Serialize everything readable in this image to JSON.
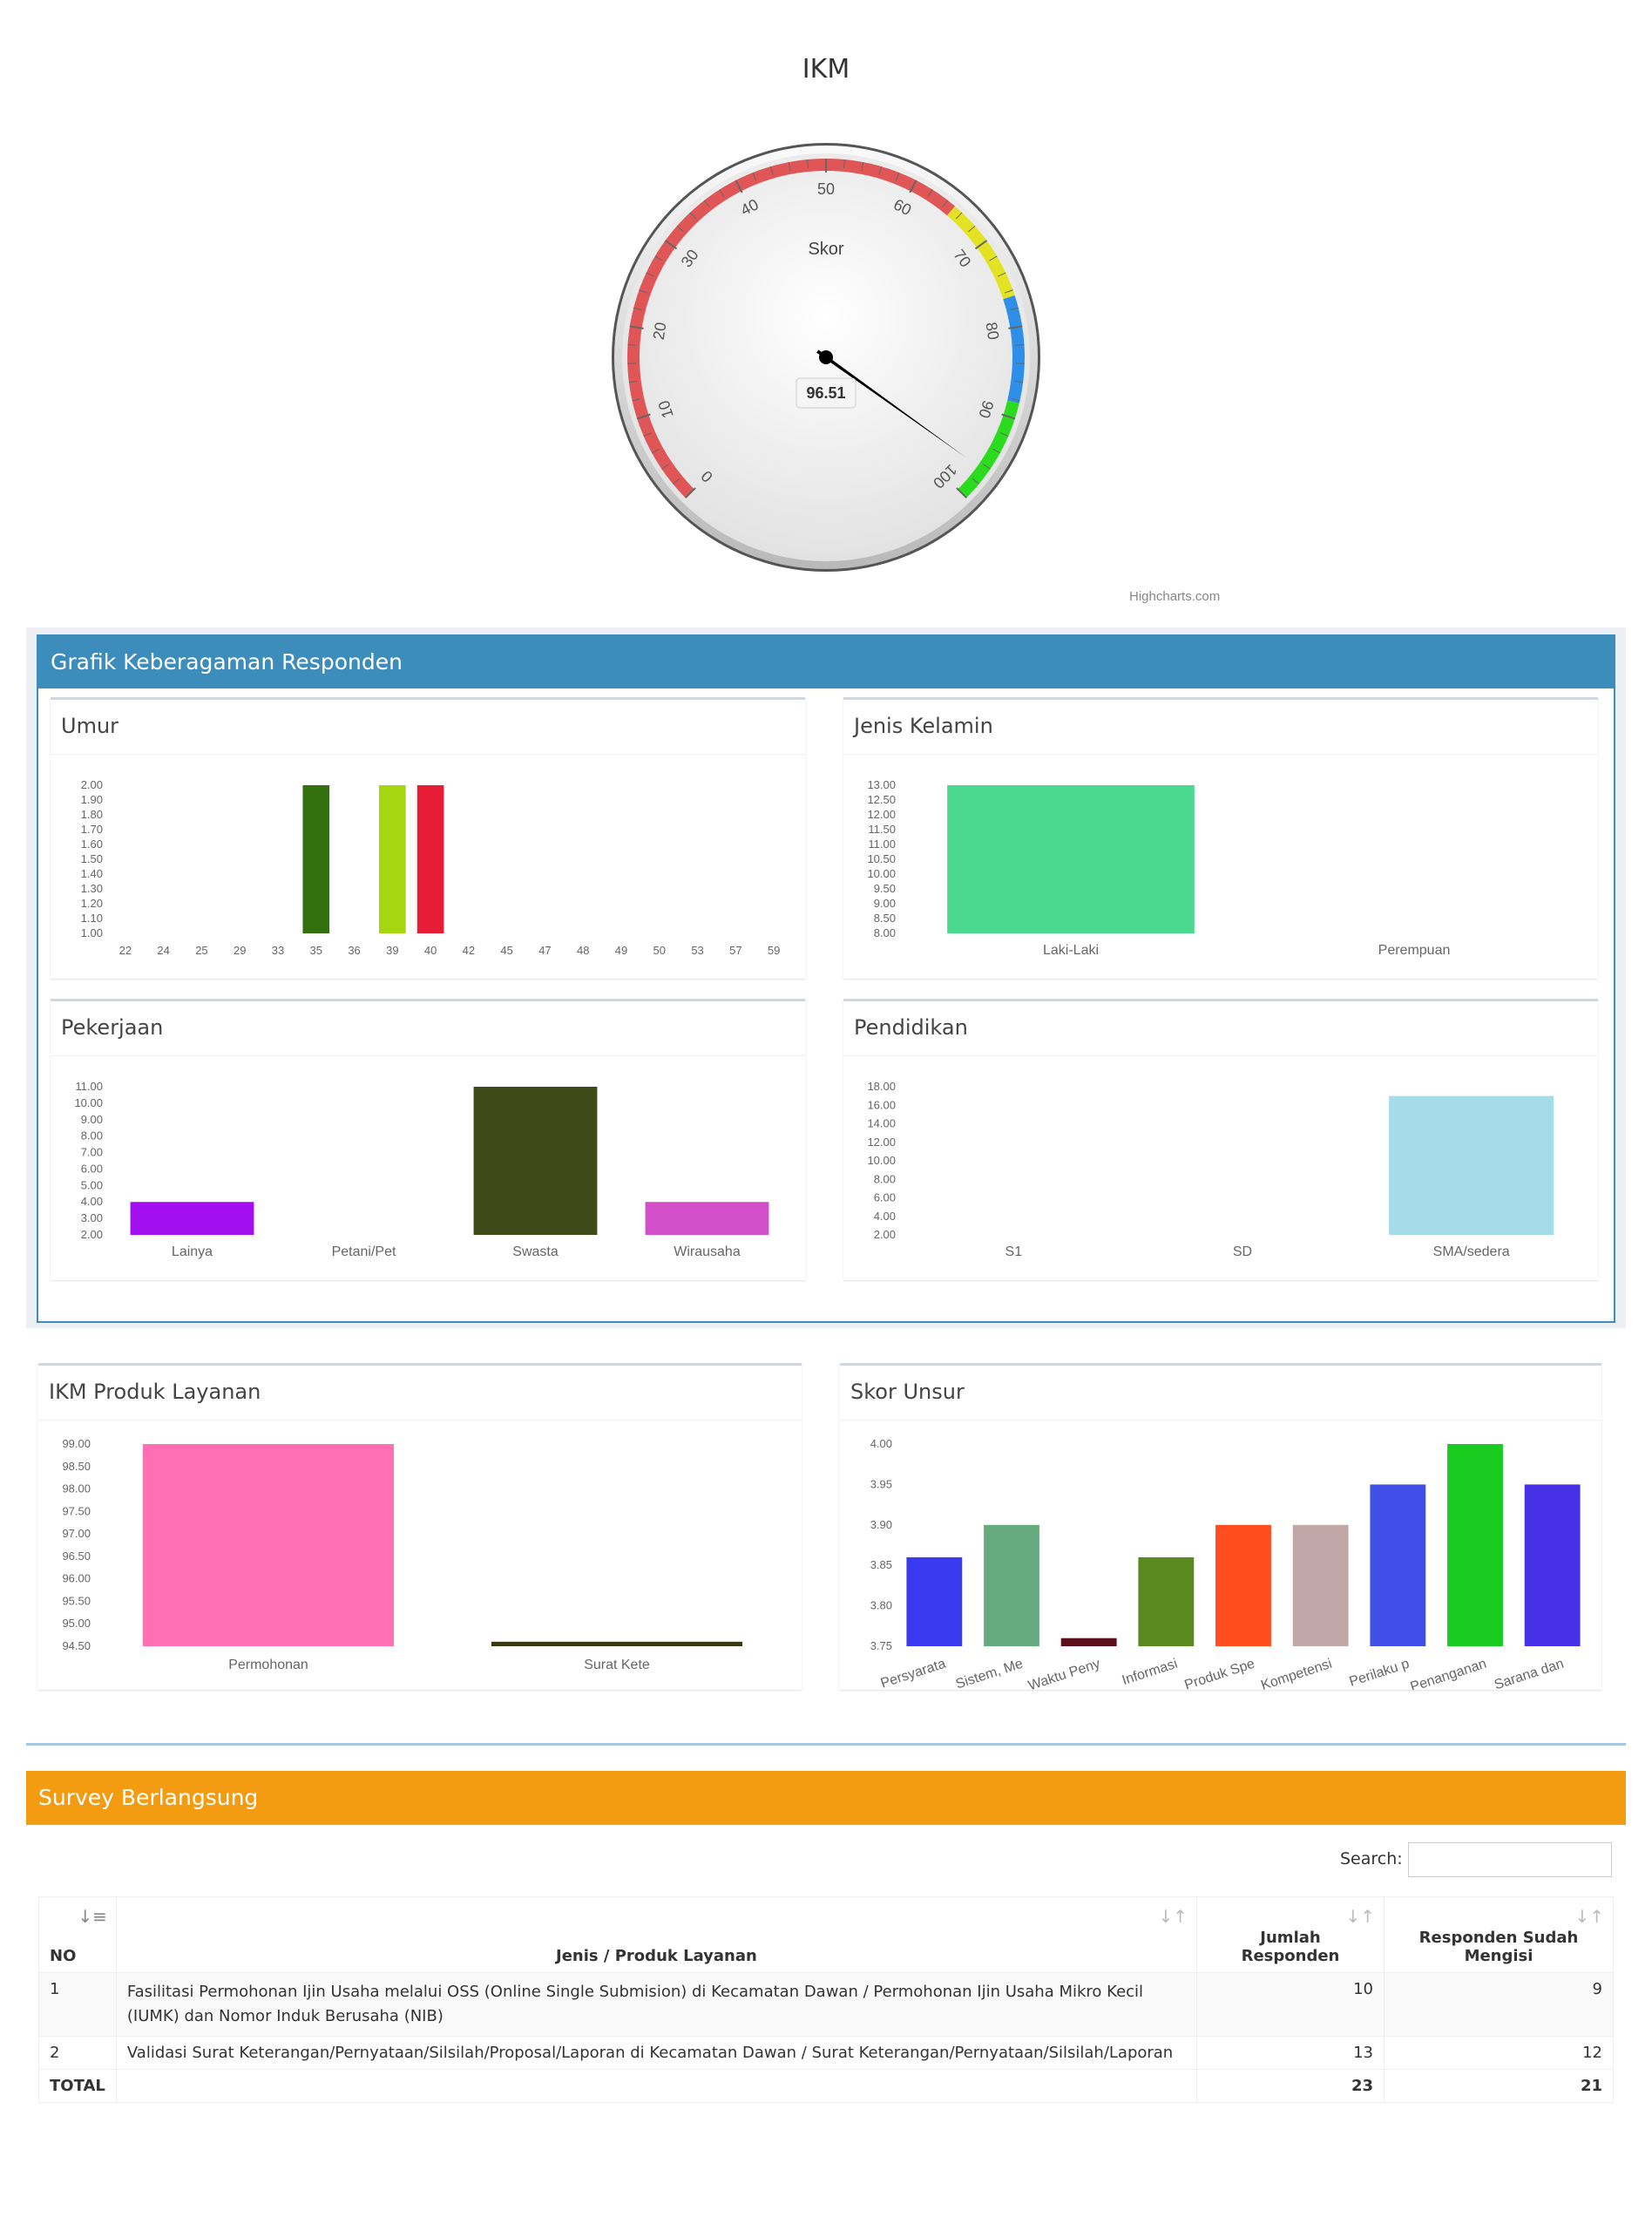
{
  "gauge": {
    "title": "IKM",
    "label": "Skor",
    "value": 96.51,
    "value_label": "96.51",
    "min": 0,
    "max": 100,
    "ticks": [
      "0",
      "10",
      "20",
      "30",
      "40",
      "50",
      "60",
      "70",
      "80",
      "90",
      "100"
    ],
    "bands": [
      {
        "from": 0,
        "to": 65,
        "color": "#e05555"
      },
      {
        "from": 65,
        "to": 76.6,
        "color": "#e3e324"
      },
      {
        "from": 76.6,
        "to": 88.3,
        "color": "#2f8fe8"
      },
      {
        "from": 88.3,
        "to": 100,
        "color": "#2bdc1e"
      }
    ],
    "credits": "Highcharts.com"
  },
  "diversity_box": {
    "title": "Grafik Keberagaman Responden"
  },
  "charts": {
    "umur": {
      "title": "Umur"
    },
    "jenis_kelamin": {
      "title": "Jenis Kelamin"
    },
    "pekerjaan": {
      "title": "Pekerjaan"
    },
    "pendidikan": {
      "title": "Pendidikan"
    },
    "ikm_produk": {
      "title": "IKM Produk Layanan"
    },
    "skor_unsur": {
      "title": "Skor Unsur"
    }
  },
  "chart_data": [
    {
      "name": "umur",
      "type": "bar",
      "categories": [
        "22",
        "24",
        "25",
        "29",
        "33",
        "35",
        "36",
        "39",
        "40",
        "42",
        "45",
        "47",
        "48",
        "49",
        "50",
        "53",
        "57",
        "59"
      ],
      "values": [
        1,
        1,
        1,
        1,
        1,
        2,
        1,
        2,
        2,
        1,
        1,
        1,
        1,
        1,
        1,
        1,
        1,
        1
      ],
      "colors": [
        "",
        "",
        "",
        "",
        "",
        "#33700e",
        "",
        "#a5d60f",
        "#e71c35",
        "",
        "",
        "",
        "",
        "",
        "",
        "",
        "",
        ""
      ],
      "ylim": [
        1,
        2
      ],
      "yticks": [
        "1.00",
        "1.10",
        "1.20",
        "1.30",
        "1.40",
        "1.50",
        "1.60",
        "1.70",
        "1.80",
        "1.90",
        "2.00"
      ]
    },
    {
      "name": "jenis_kelamin",
      "type": "bar",
      "categories": [
        "Laki-Laki",
        "Perempuan"
      ],
      "values": [
        13,
        8
      ],
      "colors": [
        "#4bd98f",
        ""
      ],
      "ylim": [
        8,
        13
      ],
      "yticks": [
        "8.00",
        "8.50",
        "9.00",
        "9.50",
        "10.00",
        "10.50",
        "11.00",
        "11.50",
        "12.00",
        "12.50",
        "13.00"
      ]
    },
    {
      "name": "pekerjaan",
      "type": "bar",
      "categories": [
        "Lainya",
        "Petani/Pet",
        "Swasta",
        "Wirausaha"
      ],
      "values": [
        4,
        2,
        11,
        4
      ],
      "colors": [
        "#a40ff0",
        "",
        "#3f4a19",
        "#d34ec9"
      ],
      "ylim": [
        2,
        11
      ],
      "yticks": [
        "2.00",
        "3.00",
        "4.00",
        "5.00",
        "6.00",
        "7.00",
        "8.00",
        "9.00",
        "10.00",
        "11.00"
      ]
    },
    {
      "name": "pendidikan",
      "type": "bar",
      "categories": [
        "S1",
        "SD",
        "SMA/sedera"
      ],
      "values": [
        2,
        2,
        17
      ],
      "colors": [
        "",
        "",
        "#a6dbea"
      ],
      "ylim": [
        2,
        18
      ],
      "yticks": [
        "2.00",
        "4.00",
        "6.00",
        "8.00",
        "10.00",
        "12.00",
        "14.00",
        "16.00",
        "18.00"
      ]
    },
    {
      "name": "ikm_produk",
      "type": "bar",
      "categories": [
        "Permohonan",
        "Surat Kete"
      ],
      "values": [
        99,
        94.6
      ],
      "colors": [
        "#ff6fb2",
        "#3a3a12"
      ],
      "ylim": [
        94.5,
        99
      ],
      "yticks": [
        "94.50",
        "95.00",
        "95.50",
        "96.00",
        "96.50",
        "97.00",
        "97.50",
        "98.00",
        "98.50",
        "99.00"
      ]
    },
    {
      "name": "skor_unsur",
      "type": "bar",
      "categories": [
        "Persyarata",
        "Sistem, Me",
        "Waktu Peny",
        "Informasi",
        "Produk Spe",
        "Kompetensi",
        "Perilaku p",
        "Penanganan",
        "Sarana dan"
      ],
      "values": [
        3.86,
        3.9,
        3.76,
        3.86,
        3.9,
        3.9,
        3.95,
        4.0,
        3.95
      ],
      "colors": [
        "#3a3af0",
        "#66ab7f",
        "#5c0f1a",
        "#5a8a1f",
        "#fe4d1e",
        "#c1a7a7",
        "#3f4fe8",
        "#19cc1f",
        "#4631e6"
      ],
      "ylim": [
        3.75,
        4.0
      ],
      "yticks": [
        "3.75",
        "3.80",
        "3.85",
        "3.90",
        "3.95",
        "4.00"
      ]
    }
  ],
  "survey": {
    "title": "Survey Berlangsung",
    "search_label": "Search:",
    "search_value": "",
    "columns": {
      "no": "NO",
      "jenis": "Jenis / Produk Layanan",
      "jumlah_1": "Jumlah",
      "jumlah_2": "Responden",
      "sudah_1": "Responden Sudah",
      "sudah_2": "Mengisi"
    },
    "rows": [
      {
        "no": "1",
        "jenis": "Fasilitasi Permohonan Ijin Usaha melalui OSS (Online Single Submision) di Kecamatan Dawan / Permohonan Ijin Usaha Mikro Kecil (IUMK) dan Nomor Induk Berusaha (NIB)",
        "jumlah": "10",
        "sudah": "9"
      },
      {
        "no": "2",
        "jenis": "Validasi Surat Keterangan/Pernyataan/Silsilah/Proposal/Laporan di Kecamatan Dawan / Surat Keterangan/Pernyataan/Silsilah/Laporan",
        "jumlah": "13",
        "sudah": "12"
      }
    ],
    "total": {
      "label": "TOTAL",
      "jumlah": "23",
      "sudah": "21"
    }
  }
}
